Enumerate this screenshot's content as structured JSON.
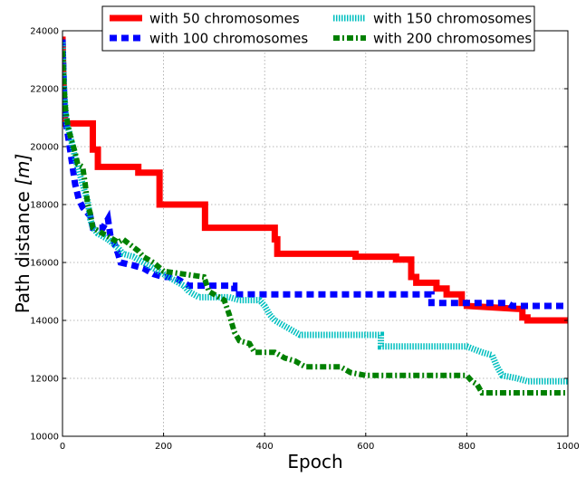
{
  "chart_data": {
    "type": "line",
    "title": "",
    "xlabel": "Epoch",
    "ylabel_main": "Path distance ",
    "ylabel_unit": "[m]",
    "xlim": [
      0,
      1000
    ],
    "ylim": [
      10000,
      24000
    ],
    "xticks": [
      0,
      200,
      400,
      600,
      800,
      1000
    ],
    "yticks": [
      10000,
      12000,
      14000,
      16000,
      18000,
      20000,
      22000,
      24000
    ],
    "grid": true,
    "legend_position": "top-center",
    "legend_columns": 2,
    "series": [
      {
        "name": "with 50 chromosomes",
        "color": "#ff0000",
        "style": "solid",
        "points": [
          [
            0,
            23800
          ],
          [
            2,
            22300
          ],
          [
            4,
            21200
          ],
          [
            6,
            20800
          ],
          [
            60,
            20800
          ],
          [
            60,
            19900
          ],
          [
            70,
            19900
          ],
          [
            70,
            19300
          ],
          [
            150,
            19300
          ],
          [
            150,
            19100
          ],
          [
            192,
            19100
          ],
          [
            192,
            18000
          ],
          [
            282,
            18000
          ],
          [
            282,
            17200
          ],
          [
            420,
            17200
          ],
          [
            420,
            16800
          ],
          [
            425,
            16800
          ],
          [
            425,
            16300
          ],
          [
            580,
            16300
          ],
          [
            580,
            16200
          ],
          [
            660,
            16200
          ],
          [
            660,
            16100
          ],
          [
            690,
            16100
          ],
          [
            690,
            15500
          ],
          [
            700,
            15500
          ],
          [
            700,
            15300
          ],
          [
            740,
            15300
          ],
          [
            740,
            15100
          ],
          [
            760,
            15100
          ],
          [
            760,
            14900
          ],
          [
            790,
            14900
          ],
          [
            790,
            14600
          ],
          [
            800,
            14600
          ],
          [
            800,
            14500
          ],
          [
            900,
            14400
          ],
          [
            910,
            14400
          ],
          [
            910,
            14100
          ],
          [
            920,
            14100
          ],
          [
            920,
            14000
          ],
          [
            1000,
            14000
          ]
        ]
      },
      {
        "name": "with 100 chromosomes",
        "color": "#0000ff",
        "style": "dashed",
        "points": [
          [
            0,
            23700
          ],
          [
            2,
            22500
          ],
          [
            4,
            21400
          ],
          [
            8,
            20700
          ],
          [
            15,
            19900
          ],
          [
            20,
            19300
          ],
          [
            25,
            18700
          ],
          [
            32,
            18200
          ],
          [
            40,
            17900
          ],
          [
            55,
            17600
          ],
          [
            60,
            17200
          ],
          [
            80,
            17200
          ],
          [
            90,
            17500
          ],
          [
            95,
            16900
          ],
          [
            100,
            16800
          ],
          [
            110,
            16300
          ],
          [
            115,
            16000
          ],
          [
            140,
            15900
          ],
          [
            160,
            15800
          ],
          [
            180,
            15600
          ],
          [
            200,
            15500
          ],
          [
            220,
            15500
          ],
          [
            240,
            15300
          ],
          [
            250,
            15200
          ],
          [
            340,
            15200
          ],
          [
            340,
            14900
          ],
          [
            730,
            14900
          ],
          [
            730,
            14600
          ],
          [
            800,
            14600
          ],
          [
            880,
            14600
          ],
          [
            890,
            14500
          ],
          [
            1000,
            14500
          ]
        ]
      },
      {
        "name": "with 150 chromosomes",
        "color": "#00bfbf",
        "style": "dotted",
        "points": [
          [
            0,
            23600
          ],
          [
            3,
            22000
          ],
          [
            6,
            21200
          ],
          [
            10,
            20700
          ],
          [
            15,
            20400
          ],
          [
            20,
            20000
          ],
          [
            25,
            19600
          ],
          [
            30,
            19300
          ],
          [
            35,
            19000
          ],
          [
            40,
            18700
          ],
          [
            45,
            18400
          ],
          [
            50,
            18100
          ],
          [
            55,
            17500
          ],
          [
            60,
            17200
          ],
          [
            70,
            17000
          ],
          [
            80,
            16900
          ],
          [
            90,
            16800
          ],
          [
            110,
            16500
          ],
          [
            120,
            16300
          ],
          [
            140,
            16200
          ],
          [
            160,
            16000
          ],
          [
            180,
            15800
          ],
          [
            200,
            15600
          ],
          [
            220,
            15400
          ],
          [
            240,
            15200
          ],
          [
            250,
            15000
          ],
          [
            270,
            14800
          ],
          [
            300,
            14800
          ],
          [
            330,
            14800
          ],
          [
            350,
            14700
          ],
          [
            390,
            14700
          ],
          [
            400,
            14500
          ],
          [
            410,
            14200
          ],
          [
            420,
            14000
          ],
          [
            440,
            13800
          ],
          [
            460,
            13600
          ],
          [
            470,
            13500
          ],
          [
            630,
            13500
          ],
          [
            630,
            13100
          ],
          [
            800,
            13100
          ],
          [
            830,
            12900
          ],
          [
            850,
            12800
          ],
          [
            860,
            12400
          ],
          [
            870,
            12100
          ],
          [
            900,
            12000
          ],
          [
            920,
            11900
          ],
          [
            1000,
            11900
          ]
        ]
      },
      {
        "name": "with 200 chromosomes",
        "color": "#008000",
        "style": "dashdot",
        "points": [
          [
            0,
            23300
          ],
          [
            3,
            22000
          ],
          [
            6,
            21300
          ],
          [
            10,
            20800
          ],
          [
            15,
            20400
          ],
          [
            20,
            20100
          ],
          [
            25,
            19800
          ],
          [
            30,
            19400
          ],
          [
            40,
            19300
          ],
          [
            45,
            18700
          ],
          [
            50,
            18000
          ],
          [
            55,
            17700
          ],
          [
            60,
            17200
          ],
          [
            80,
            17000
          ],
          [
            100,
            16800
          ],
          [
            110,
            16700
          ],
          [
            120,
            16800
          ],
          [
            150,
            16400
          ],
          [
            160,
            16200
          ],
          [
            180,
            16000
          ],
          [
            200,
            15700
          ],
          [
            240,
            15600
          ],
          [
            280,
            15500
          ],
          [
            290,
            15000
          ],
          [
            320,
            14700
          ],
          [
            330,
            14200
          ],
          [
            340,
            13600
          ],
          [
            350,
            13300
          ],
          [
            370,
            13200
          ],
          [
            380,
            12900
          ],
          [
            420,
            12900
          ],
          [
            440,
            12700
          ],
          [
            460,
            12600
          ],
          [
            480,
            12400
          ],
          [
            550,
            12400
          ],
          [
            570,
            12200
          ],
          [
            600,
            12100
          ],
          [
            800,
            12100
          ],
          [
            810,
            11900
          ],
          [
            820,
            11800
          ],
          [
            830,
            11500
          ],
          [
            1000,
            11500
          ]
        ]
      }
    ]
  }
}
